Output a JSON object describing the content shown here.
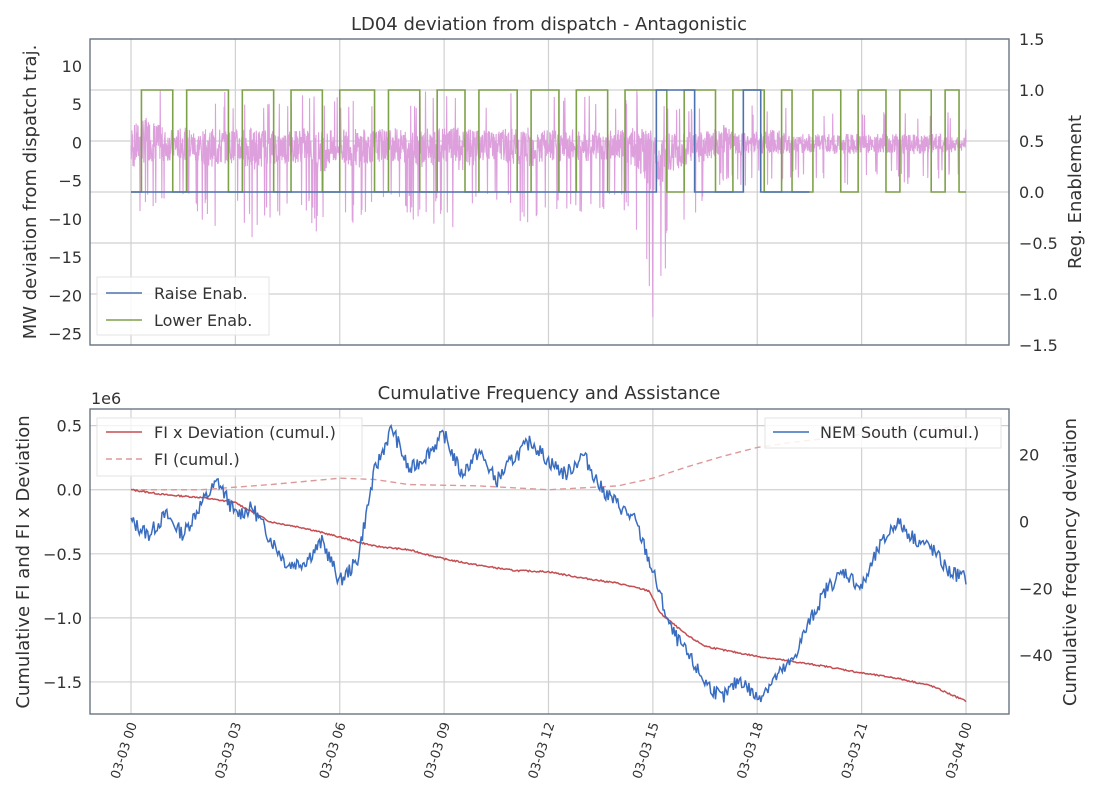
{
  "chart_data": [
    {
      "type": "line",
      "title": "LD04 deviation from dispatch - Antagonistic",
      "ylabel": "MW deviation from dispatch traj.",
      "y2label": "Reg. Enablement",
      "ylim": [
        -26.5,
        13.5
      ],
      "y2lim": [
        -1.5,
        1.5
      ],
      "yticks": [
        "10",
        "5",
        "0",
        "−5",
        "−10",
        "−15",
        "−20",
        "−25"
      ],
      "y2ticks": [
        "1.5",
        "1.0",
        "0.5",
        "0.0",
        "−0.5",
        "−1.0",
        "−1.5"
      ],
      "legend": {
        "position": "lower-left",
        "entries": [
          "Raise Enab.",
          "Lower Enab."
        ]
      },
      "grid": true,
      "series": [
        {
          "name": "Raise Enab.",
          "axis": "y2",
          "color": "#4c72b0",
          "steps": [
            [
              0,
              0
            ],
            [
              15.1,
              1
            ],
            [
              16.2,
              0
            ],
            [
              17.6,
              1
            ],
            [
              18.1,
              0
            ],
            [
              19.5,
              0
            ]
          ]
        },
        {
          "name": "Lower Enab.",
          "axis": "y2",
          "color": "#7ea24a",
          "steps": [
            [
              0,
              0
            ],
            [
              0.3,
              1
            ],
            [
              1.2,
              0
            ],
            [
              1.6,
              1
            ],
            [
              2.8,
              0
            ],
            [
              3.2,
              1
            ],
            [
              4.1,
              0
            ],
            [
              4.6,
              1
            ],
            [
              5.5,
              0
            ],
            [
              6.0,
              1
            ],
            [
              7.0,
              0
            ],
            [
              7.4,
              1
            ],
            [
              8.3,
              0
            ],
            [
              8.8,
              1
            ],
            [
              9.6,
              0
            ],
            [
              10.0,
              1
            ],
            [
              11.1,
              0
            ],
            [
              11.5,
              1
            ],
            [
              12.3,
              0
            ],
            [
              12.8,
              1
            ],
            [
              13.7,
              0
            ],
            [
              14.2,
              1
            ],
            [
              15.4,
              0
            ],
            [
              15.9,
              1
            ],
            [
              16.8,
              0
            ],
            [
              17.3,
              1
            ],
            [
              18.2,
              0
            ],
            [
              18.7,
              1
            ],
            [
              19.0,
              0
            ],
            [
              19.6,
              1
            ],
            [
              20.4,
              0
            ],
            [
              20.9,
              1
            ],
            [
              21.7,
              0
            ],
            [
              22.1,
              1
            ],
            [
              23.0,
              0
            ],
            [
              23.4,
              1
            ],
            [
              23.8,
              0
            ],
            [
              24.0,
              0
            ]
          ]
        },
        {
          "name": "MW deviation",
          "axis": "y",
          "color": "#dda0dd",
          "x_hours": [
            0,
            0.5,
            1,
            1.5,
            2,
            2.5,
            3,
            3.5,
            4,
            4.5,
            5,
            5.5,
            6,
            6.5,
            7,
            7.5,
            8,
            8.5,
            9,
            9.5,
            10,
            10.5,
            11,
            11.5,
            12,
            12.5,
            13,
            13.5,
            14,
            14.5,
            15,
            15.5,
            16,
            16.5,
            17,
            17.5,
            18,
            18.5,
            19,
            19.5,
            20,
            20.5,
            21,
            21.5,
            22,
            22.5,
            23,
            23.5,
            24
          ],
          "min": [
            -13,
            -9,
            -9,
            -8,
            -10,
            -12,
            -9,
            -13,
            -10,
            -10,
            -9,
            -14,
            -9,
            -12,
            -9,
            -9,
            -10,
            -12,
            -9,
            -14,
            -9,
            -9,
            -10,
            -12,
            -9,
            -10,
            -9,
            -9,
            -9,
            -11,
            -25,
            -14,
            -10,
            -9,
            -5,
            -6,
            -5,
            -6,
            -5,
            -5,
            -5,
            -6,
            -5,
            -5,
            -5,
            -6,
            -5,
            -5,
            -4
          ],
          "max": [
            8,
            12,
            6,
            7,
            6,
            7,
            6,
            7,
            6,
            6,
            7,
            6,
            6,
            7,
            6,
            7,
            6,
            7,
            7,
            7,
            6,
            6,
            7,
            7,
            6,
            6,
            7,
            6,
            6,
            7,
            6,
            5,
            5,
            5,
            8,
            5,
            5,
            6,
            4,
            4,
            4,
            4,
            4,
            4,
            4,
            4,
            4,
            4,
            2
          ]
        }
      ]
    },
    {
      "type": "line",
      "title": "Cumulative Frequency and Assistance",
      "ylabel": "Cumulative FI and FI x Deviation",
      "y2label": "Cumulative frequency deviation",
      "y_multiplier": "1e6",
      "ylim": [
        -1.75,
        0.63
      ],
      "y2lim": [
        -57.6,
        33.6
      ],
      "yticks": [
        "0.5",
        "0.0",
        "−0.5",
        "−1.0",
        "−1.5"
      ],
      "y2ticks": [
        "20",
        "0",
        "−20",
        "−40"
      ],
      "xticks": [
        "03-03 00",
        "03-03 03",
        "03-03 06",
        "03-03 09",
        "03-03 12",
        "03-03 15",
        "03-03 18",
        "03-03 21",
        "03-04 00"
      ],
      "legend_left": {
        "position": "upper-left",
        "entries": [
          "FI x Deviation (cumul.)",
          "FI (cumul.)"
        ]
      },
      "legend_right": {
        "position": "upper-right",
        "entries": [
          "NEM South (cumul.)"
        ]
      },
      "grid": true,
      "series": [
        {
          "name": "FI x Deviation (cumul.)",
          "axis": "y",
          "color": "#c44e52",
          "x_hours": [
            0,
            1,
            2,
            3,
            4,
            5,
            6,
            7,
            8,
            9,
            10,
            11,
            12,
            13,
            14,
            14.9,
            15.2,
            15.6,
            16,
            16.5,
            17,
            18,
            19,
            20,
            21,
            22,
            23,
            24
          ],
          "values": [
            0.0,
            -0.04,
            -0.06,
            -0.1,
            -0.25,
            -0.3,
            -0.37,
            -0.44,
            -0.47,
            -0.54,
            -0.59,
            -0.63,
            -0.64,
            -0.69,
            -0.73,
            -0.79,
            -0.96,
            -1.05,
            -1.14,
            -1.22,
            -1.25,
            -1.3,
            -1.34,
            -1.38,
            -1.43,
            -1.47,
            -1.53,
            -1.65
          ]
        },
        {
          "name": "FI (cumul.)",
          "axis": "y",
          "color": "#dd9999",
          "dashed": true,
          "x_hours": [
            0,
            2,
            4,
            6,
            7,
            8,
            10,
            12,
            14,
            15,
            16,
            17,
            18,
            19,
            20,
            21,
            22,
            23,
            24
          ],
          "values": [
            0.0,
            0.0,
            0.04,
            0.09,
            0.08,
            0.04,
            0.03,
            0.0,
            0.03,
            0.09,
            0.18,
            0.26,
            0.33,
            0.37,
            0.4,
            0.43,
            0.45,
            0.47,
            0.5
          ]
        },
        {
          "name": "NEM South (cumul.)",
          "axis": "y2",
          "color": "#3a6dbf",
          "x_hours": [
            0,
            0.5,
            1,
            1.5,
            2,
            2.5,
            3,
            3.5,
            4,
            4.5,
            5,
            5.5,
            6,
            6.5,
            7,
            7.5,
            8,
            8.5,
            9,
            9.5,
            10,
            10.5,
            11,
            11.5,
            12,
            12.5,
            13,
            13.5,
            14,
            14.5,
            15,
            15.5,
            16,
            16.5,
            17,
            17.5,
            18,
            18.5,
            19,
            19.5,
            20,
            20.5,
            21,
            21.5,
            22,
            22.5,
            23,
            23.5,
            24
          ],
          "values": [
            0,
            -4,
            2,
            -4,
            5,
            12,
            2,
            4,
            -5,
            -13,
            -12,
            -6,
            -18,
            -12,
            15,
            28,
            15,
            20,
            26,
            14,
            21,
            12,
            19,
            24,
            18,
            14,
            20,
            10,
            5,
            0,
            -15,
            -32,
            -40,
            -48,
            -53,
            -47,
            -53,
            -47,
            -42,
            -30,
            -20,
            -15,
            -20,
            -8,
            0,
            -5,
            -8,
            -15,
            -17
          ]
        }
      ]
    }
  ]
}
